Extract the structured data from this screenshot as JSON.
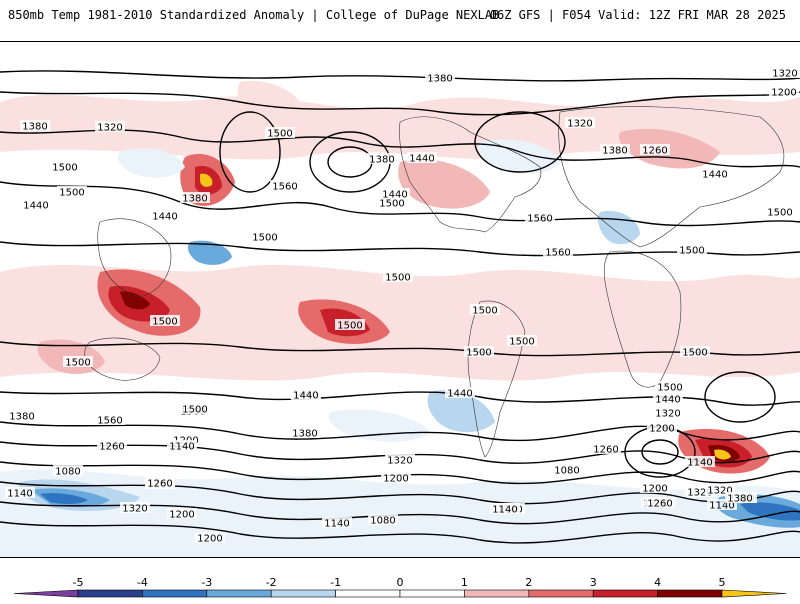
{
  "header": {
    "title_left": "850mb Temp 1981-2010 Standardized Anomaly | College of DuPage NEXLAB",
    "title_right": "06Z GFS | F054 Valid: 12Z FRI MAR 28 2025"
  },
  "colorbar": {
    "tick_labels": [
      "-5",
      "-4",
      "-3",
      "-2",
      "-1",
      "0",
      "1",
      "2",
      "3",
      "4",
      "5"
    ],
    "bins": [
      {
        "color": "#7b3fa0"
      },
      {
        "color": "#2b3f8c"
      },
      {
        "color": "#2f74c0"
      },
      {
        "color": "#69a9dc"
      },
      {
        "color": "#b8d6ee"
      },
      {
        "color": "#ffffff"
      },
      {
        "color": "#ffffff"
      },
      {
        "color": "#f2b8b8"
      },
      {
        "color": "#e56b6b"
      },
      {
        "color": "#c8202a"
      },
      {
        "color": "#800000"
      },
      {
        "color": "#f5c518"
      }
    ]
  },
  "map": {
    "contour_labels": [
      "1380",
      "1320",
      "1200",
      "1380",
      "1320",
      "1500",
      "1380",
      "1440",
      "1320",
      "1380",
      "1260",
      "1440",
      "1500",
      "1500",
      "1440",
      "1380",
      "1560",
      "1440",
      "1500",
      "1560",
      "1500",
      "1440",
      "1500",
      "1560",
      "1500",
      "1500",
      "1500",
      "1500",
      "1500",
      "1500",
      "1500",
      "1500",
      "1500",
      "1440",
      "1500",
      "1380",
      "1560",
      "1320",
      "1440",
      "1200",
      "1260",
      "1500",
      "1380",
      "1440",
      "1320",
      "1260",
      "1200",
      "1140",
      "1260",
      "1140",
      "1200",
      "1080",
      "1200",
      "1320",
      "1140",
      "1260",
      "1080",
      "1380",
      "1140",
      "1140",
      "1200",
      "1140",
      "1080",
      "1140",
      "1320",
      "1200",
      "1260",
      "1440",
      "1500",
      "1320",
      "1380",
      "1260"
    ]
  }
}
